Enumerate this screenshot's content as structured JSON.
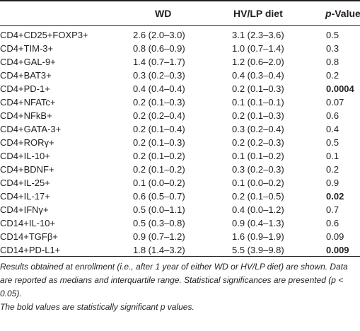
{
  "header": {
    "col_marker": "",
    "col_wd": "WD",
    "col_diet": "HV/LP diet",
    "col_p_italic": "p",
    "col_p_rest": "-Value"
  },
  "rows": [
    {
      "marker": "CD4+CD25+FOXP3+",
      "wd": "2.6 (2.0–3.0)",
      "diet": "3.1 (2.3–3.6)",
      "p": "0.5",
      "significant": false
    },
    {
      "marker": "CD4+TIM-3+",
      "wd": "0.8 (0.6–0.9)",
      "diet": "1.0 (0.7–1.4)",
      "p": "0.3",
      "significant": false
    },
    {
      "marker": "CD4+GAL-9+",
      "wd": "1.4 (0.7–1.7)",
      "diet": "1.2 (0.6–2.0)",
      "p": "0.8",
      "significant": false
    },
    {
      "marker": "CD4+BAT3+",
      "wd": "0.3 (0.2–0.3)",
      "diet": "0.4 (0.3–0.4)",
      "p": "0.2",
      "significant": false
    },
    {
      "marker": "CD4+PD-1+",
      "wd": "0.4 (0.4–0.4)",
      "diet": "0.2 (0.1–0.3)",
      "p": "0.0004",
      "significant": true
    },
    {
      "marker": "CD4+NFATc+",
      "wd": "0.2 (0.1–0.3)",
      "diet": "0.1 (0.1–0.1)",
      "p": "0.07",
      "significant": false
    },
    {
      "marker": "CD4+NFkB+",
      "wd": "0.2 (0.2–0.4)",
      "diet": "0.2 (0.1–0.3)",
      "p": "0.6",
      "significant": false
    },
    {
      "marker": "CD4+GATA-3+",
      "wd": "0.2 (0.1–0.4)",
      "diet": "0.3 (0.2–0.4)",
      "p": "0.4",
      "significant": false
    },
    {
      "marker": "CD4+RORγ+",
      "wd": "0.2 (0.1–0.3)",
      "diet": "0.2 (0.2–0.3)",
      "p": "0.5",
      "significant": false
    },
    {
      "marker": "CD4+IL-10+",
      "wd": "0.2 (0.1–0.2)",
      "diet": "0.1 (0.1–0.2)",
      "p": "0.1",
      "significant": false
    },
    {
      "marker": "CD4+BDNF+",
      "wd": "0.2 (0.1–0.2)",
      "diet": "0.3 (0.2–0.3)",
      "p": "0.2",
      "significant": false
    },
    {
      "marker": "CD4+IL-25+",
      "wd": "0.1 (0.0–0.2)",
      "diet": "0.1 (0.0–0.2)",
      "p": "0.9",
      "significant": false
    },
    {
      "marker": "CD4+IL-17+",
      "wd": "0.6 (0.5–0.7)",
      "diet": "0.2 (0.1–0.5)",
      "p": "0.02",
      "significant": true
    },
    {
      "marker": "CD4+IFNγ+",
      "wd": "0.5 (0.0–1.1)",
      "diet": "0.4 (0.0–1.2)",
      "p": "0.7",
      "significant": false
    },
    {
      "marker": "CD14+IL-10+",
      "wd": "0.5 (0.3–0.8)",
      "diet": "0.9 (0.4–1.3)",
      "p": "0.6",
      "significant": false
    },
    {
      "marker": "CD14+TGFβ+",
      "wd": "0.9 (0.7–1.2)",
      "diet": "1.6 (0.9–1.9)",
      "p": "0.09",
      "significant": false
    },
    {
      "marker": "CD14+PD-L1+",
      "wd": "1.8 (1.4–3.2)",
      "diet": "5.5 (3.9–9.8)",
      "p": "0.009",
      "significant": true
    }
  ],
  "footnote": {
    "line1": "Results obtained at enrollment (i.e., after 1 year of either WD or HV/LP diet) are shown. Data are reported as medians and interquartile range. Statistical significances are presented (p < 0.05).",
    "line2": "The bold values are statistically significant p values."
  }
}
